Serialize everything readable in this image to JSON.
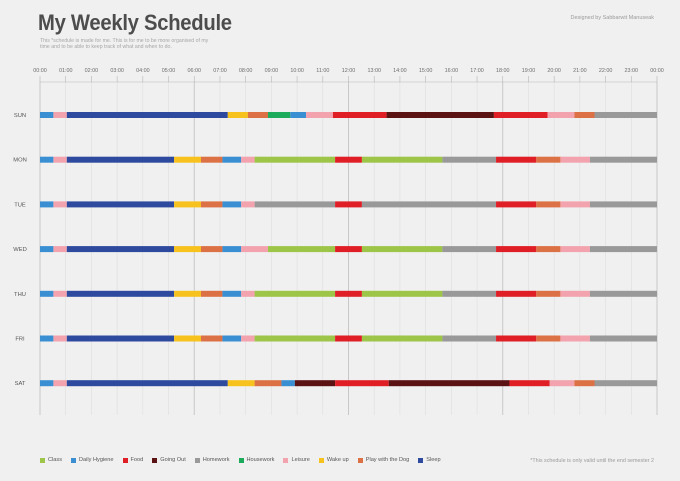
{
  "header": {
    "title": "My Weekly Schedule",
    "subtitle": "This *schedule is made for me. This is for me to be more organised of my time and to be able to keep track of what and when to do.",
    "designer": "Designed by Sabbarwit Manuseak"
  },
  "footer": {
    "note": "*This schedule is only valid until the end semester 2"
  },
  "colors": {
    "Class": "#9dc548",
    "Daily Hygiene": "#3a8fd3",
    "Food": "#e01e26",
    "Going Out": "#5a1212",
    "Homework": "#999999",
    "Housework": "#1cab5b",
    "Leisure": "#f3a3ad",
    "Wake up": "#f7c21d",
    "Play with the Dog": "#dd7146",
    "Sleep": "#2e4a9f"
  },
  "chart_data": {
    "type": "gantt",
    "title": "My Weekly Schedule",
    "x_range": [
      0,
      23
    ],
    "x_ticks": [
      "00:00",
      "01:00",
      "02:00",
      "03:00",
      "04:00",
      "05:00",
      "06:00",
      "07:00",
      "08:00",
      "09:00",
      "10:00",
      "11:00",
      "12:00",
      "13:00",
      "14:00",
      "15:00",
      "16:00",
      "17:00",
      "18:00",
      "19:00",
      "20:00",
      "21:00",
      "22:00",
      "23:00",
      "00:00"
    ],
    "legend": [
      {
        "label": "Class",
        "color": "#9dc548"
      },
      {
        "label": "Daily Hygiene",
        "color": "#3a8fd3"
      },
      {
        "label": "Food",
        "color": "#e01e26"
      },
      {
        "label": "Going Out",
        "color": "#5a1212"
      },
      {
        "label": "Homework",
        "color": "#999999"
      },
      {
        "label": "Housework",
        "color": "#1cab5b"
      },
      {
        "label": "Leisure",
        "color": "#f3a3ad"
      },
      {
        "label": "Wake up",
        "color": "#f7c21d"
      },
      {
        "label": "Play with the Dog",
        "color": "#dd7146"
      },
      {
        "label": "Sleep",
        "color": "#2e4a9f"
      }
    ],
    "days": [
      {
        "day": "SUN",
        "segments": [
          {
            "activity": "Daily Hygiene",
            "start": 0,
            "end": 0.5
          },
          {
            "activity": "Leisure",
            "start": 0.5,
            "end": 1
          },
          {
            "activity": "Sleep",
            "start": 1,
            "end": 7
          },
          {
            "activity": "Wake up",
            "start": 7,
            "end": 7.75
          },
          {
            "activity": "Play with the Dog",
            "start": 7.75,
            "end": 8.5
          },
          {
            "activity": "Housework",
            "start": 8.5,
            "end": 9.33
          },
          {
            "activity": "Daily Hygiene",
            "start": 9.33,
            "end": 9.92
          },
          {
            "activity": "Leisure",
            "start": 9.92,
            "end": 10.92
          },
          {
            "activity": "Food",
            "start": 10.92,
            "end": 12.92
          },
          {
            "activity": "Going Out",
            "start": 12.92,
            "end": 16.92
          },
          {
            "activity": "Food",
            "start": 16.92,
            "end": 18.92
          },
          {
            "activity": "Leisure",
            "start": 18.92,
            "end": 19.92
          },
          {
            "activity": "Play with the Dog",
            "start": 19.92,
            "end": 20.67
          },
          {
            "activity": "Homework",
            "start": 20.67,
            "end": 23
          }
        ]
      },
      {
        "day": "MON",
        "segments": [
          {
            "activity": "Daily Hygiene",
            "start": 0,
            "end": 0.5
          },
          {
            "activity": "Leisure",
            "start": 0.5,
            "end": 1
          },
          {
            "activity": "Sleep",
            "start": 1,
            "end": 5
          },
          {
            "activity": "Wake up",
            "start": 5,
            "end": 6
          },
          {
            "activity": "Play with the Dog",
            "start": 6,
            "end": 6.8
          },
          {
            "activity": "Daily Hygiene",
            "start": 6.8,
            "end": 7.5
          },
          {
            "activity": "Leisure",
            "start": 7.5,
            "end": 8
          },
          {
            "activity": "Class",
            "start": 8,
            "end": 11
          },
          {
            "activity": "Food",
            "start": 11,
            "end": 12
          },
          {
            "activity": "Class",
            "start": 12,
            "end": 15
          },
          {
            "activity": "Homework",
            "start": 15,
            "end": 17
          },
          {
            "activity": "Food",
            "start": 17,
            "end": 18.5
          },
          {
            "activity": "Play with the Dog",
            "start": 18.5,
            "end": 19.4
          },
          {
            "activity": "Leisure",
            "start": 19.4,
            "end": 20.5
          },
          {
            "activity": "Homework",
            "start": 20.5,
            "end": 23
          }
        ]
      },
      {
        "day": "TUE",
        "segments": [
          {
            "activity": "Daily Hygiene",
            "start": 0,
            "end": 0.5
          },
          {
            "activity": "Leisure",
            "start": 0.5,
            "end": 1
          },
          {
            "activity": "Sleep",
            "start": 1,
            "end": 5
          },
          {
            "activity": "Wake up",
            "start": 5,
            "end": 6
          },
          {
            "activity": "Play with the Dog",
            "start": 6,
            "end": 6.8
          },
          {
            "activity": "Daily Hygiene",
            "start": 6.8,
            "end": 7.5
          },
          {
            "activity": "Leisure",
            "start": 7.5,
            "end": 8
          },
          {
            "activity": "Homework",
            "start": 8,
            "end": 11
          },
          {
            "activity": "Food",
            "start": 11,
            "end": 12
          },
          {
            "activity": "Homework",
            "start": 12,
            "end": 17
          },
          {
            "activity": "Food",
            "start": 17,
            "end": 18.5
          },
          {
            "activity": "Play with the Dog",
            "start": 18.5,
            "end": 19.4
          },
          {
            "activity": "Leisure",
            "start": 19.4,
            "end": 20.5
          },
          {
            "activity": "Homework",
            "start": 20.5,
            "end": 23
          }
        ]
      },
      {
        "day": "WED",
        "segments": [
          {
            "activity": "Daily Hygiene",
            "start": 0,
            "end": 0.5
          },
          {
            "activity": "Leisure",
            "start": 0.5,
            "end": 1
          },
          {
            "activity": "Sleep",
            "start": 1,
            "end": 5
          },
          {
            "activity": "Wake up",
            "start": 5,
            "end": 6
          },
          {
            "activity": "Play with the Dog",
            "start": 6,
            "end": 6.8
          },
          {
            "activity": "Daily Hygiene",
            "start": 6.8,
            "end": 7.5
          },
          {
            "activity": "Leisure",
            "start": 7.5,
            "end": 8.5
          },
          {
            "activity": "Class",
            "start": 8.5,
            "end": 11
          },
          {
            "activity": "Food",
            "start": 11,
            "end": 12
          },
          {
            "activity": "Class",
            "start": 12,
            "end": 15
          },
          {
            "activity": "Homework",
            "start": 15,
            "end": 17
          },
          {
            "activity": "Food",
            "start": 17,
            "end": 18.5
          },
          {
            "activity": "Play with the Dog",
            "start": 18.5,
            "end": 19.4
          },
          {
            "activity": "Leisure",
            "start": 19.4,
            "end": 20.5
          },
          {
            "activity": "Homework",
            "start": 20.5,
            "end": 23
          }
        ]
      },
      {
        "day": "THU",
        "segments": [
          {
            "activity": "Daily Hygiene",
            "start": 0,
            "end": 0.5
          },
          {
            "activity": "Leisure",
            "start": 0.5,
            "end": 1
          },
          {
            "activity": "Sleep",
            "start": 1,
            "end": 5
          },
          {
            "activity": "Wake up",
            "start": 5,
            "end": 6
          },
          {
            "activity": "Play with the Dog",
            "start": 6,
            "end": 6.8
          },
          {
            "activity": "Daily Hygiene",
            "start": 6.8,
            "end": 7.5
          },
          {
            "activity": "Leisure",
            "start": 7.5,
            "end": 8
          },
          {
            "activity": "Class",
            "start": 8,
            "end": 11
          },
          {
            "activity": "Food",
            "start": 11,
            "end": 12
          },
          {
            "activity": "Class",
            "start": 12,
            "end": 15
          },
          {
            "activity": "Homework",
            "start": 15,
            "end": 17
          },
          {
            "activity": "Food",
            "start": 17,
            "end": 18.5
          },
          {
            "activity": "Play with the Dog",
            "start": 18.5,
            "end": 19.4
          },
          {
            "activity": "Leisure",
            "start": 19.4,
            "end": 20.5
          },
          {
            "activity": "Homework",
            "start": 20.5,
            "end": 23
          }
        ]
      },
      {
        "day": "FRI",
        "segments": [
          {
            "activity": "Daily Hygiene",
            "start": 0,
            "end": 0.5
          },
          {
            "activity": "Leisure",
            "start": 0.5,
            "end": 1
          },
          {
            "activity": "Sleep",
            "start": 1,
            "end": 5
          },
          {
            "activity": "Wake up",
            "start": 5,
            "end": 6
          },
          {
            "activity": "Play with the Dog",
            "start": 6,
            "end": 6.8
          },
          {
            "activity": "Daily Hygiene",
            "start": 6.8,
            "end": 7.5
          },
          {
            "activity": "Leisure",
            "start": 7.5,
            "end": 8
          },
          {
            "activity": "Class",
            "start": 8,
            "end": 11
          },
          {
            "activity": "Food",
            "start": 11,
            "end": 12
          },
          {
            "activity": "Class",
            "start": 12,
            "end": 15
          },
          {
            "activity": "Homework",
            "start": 15,
            "end": 17
          },
          {
            "activity": "Food",
            "start": 17,
            "end": 18.5
          },
          {
            "activity": "Play with the Dog",
            "start": 18.5,
            "end": 19.4
          },
          {
            "activity": "Leisure",
            "start": 19.4,
            "end": 20.5
          },
          {
            "activity": "Homework",
            "start": 20.5,
            "end": 23
          }
        ]
      },
      {
        "day": "SAT",
        "segments": [
          {
            "activity": "Daily Hygiene",
            "start": 0,
            "end": 0.5
          },
          {
            "activity": "Leisure",
            "start": 0.5,
            "end": 1
          },
          {
            "activity": "Sleep",
            "start": 1,
            "end": 7
          },
          {
            "activity": "Wake up",
            "start": 7,
            "end": 8
          },
          {
            "activity": "Play with the Dog",
            "start": 8,
            "end": 9
          },
          {
            "activity": "Daily Hygiene",
            "start": 9,
            "end": 9.5
          },
          {
            "activity": "Going Out",
            "start": 9.5,
            "end": 11
          },
          {
            "activity": "Food",
            "start": 11,
            "end": 13
          },
          {
            "activity": "Going Out",
            "start": 13,
            "end": 17.5
          },
          {
            "activity": "Food",
            "start": 17.5,
            "end": 19
          },
          {
            "activity": "Leisure",
            "start": 19,
            "end": 19.92
          },
          {
            "activity": "Play with the Dog",
            "start": 19.92,
            "end": 20.67
          },
          {
            "activity": "Homework",
            "start": 20.67,
            "end": 23
          }
        ]
      }
    ]
  }
}
